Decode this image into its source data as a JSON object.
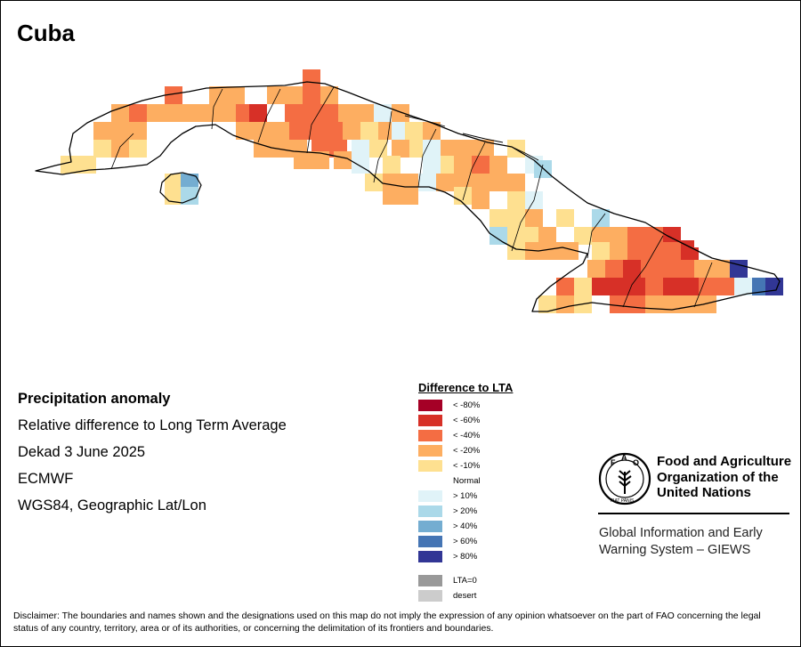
{
  "title": "Cuba",
  "info": {
    "heading": "Precipitation anomaly",
    "line1": "Relative difference to Long Term Average",
    "line2": "Dekad 3 June 2025",
    "line3": "ECMWF",
    "line4": "WGS84, Geographic Lat/Lon"
  },
  "legend": {
    "title": "Difference to LTA",
    "items": [
      {
        "label": "< -80%",
        "color": "#a50026"
      },
      {
        "label": "< -60%",
        "color": "#d73027"
      },
      {
        "label": "< -40%",
        "color": "#f46d43"
      },
      {
        "label": "< -20%",
        "color": "#fdae61"
      },
      {
        "label": "< -10%",
        "color": "#fee090"
      },
      {
        "label": "Normal",
        "color": "#ffffff"
      },
      {
        "label": "> 10%",
        "color": "#e0f3f8"
      },
      {
        "label": "> 20%",
        "color": "#abd9e9"
      },
      {
        "label": "> 40%",
        "color": "#74add1"
      },
      {
        "label": "> 60%",
        "color": "#4575b4"
      },
      {
        "label": "> 80%",
        "color": "#313695"
      },
      {
        "label": "LTA=0",
        "color": "#999999"
      },
      {
        "label": "desert",
        "color": "#cccccc"
      }
    ]
  },
  "fao": {
    "name_line1": "Food and Agriculture",
    "name_line2": "Organization of the",
    "name_line3": "United Nations",
    "logo_letters": "FAO",
    "logo_motto": "FIAT PANIS"
  },
  "giews": {
    "line1": "Global Information and Early",
    "line2": "Warning System – GIEWS"
  },
  "disclaimer": "Disclaimer: The boundaries and names shown and the designations used on this map do not imply the expression of any opinion whatsoever on the part of FAO concerning the legal status of any country, territory, area or of its authorities, or concerning the delimitation of its frontiers and boundaries."
}
